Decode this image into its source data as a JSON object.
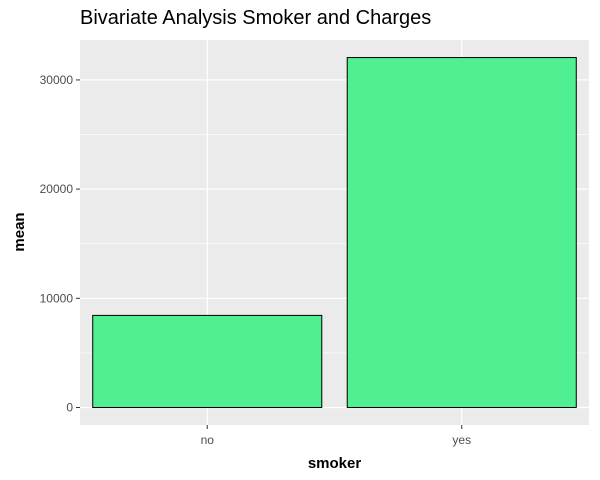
{
  "chart_data": {
    "type": "bar",
    "title": "Bivariate Analysis Smoker and Charges",
    "xlabel": "smoker",
    "ylabel": "mean",
    "categories": [
      "no",
      "yes"
    ],
    "values": [
      8434,
      32050
    ],
    "ylim": [
      -1603,
      33657
    ],
    "yticks": [
      0,
      10000,
      20000,
      30000
    ],
    "ytick_labels": [
      "0",
      "10000",
      "20000",
      "30000"
    ],
    "grid": true,
    "legend": "none",
    "colors": {
      "panel": "#ebebeb",
      "grid_major": "#ffffff",
      "bar_fill": "#50ef92",
      "bar_stroke": "#000000"
    }
  }
}
